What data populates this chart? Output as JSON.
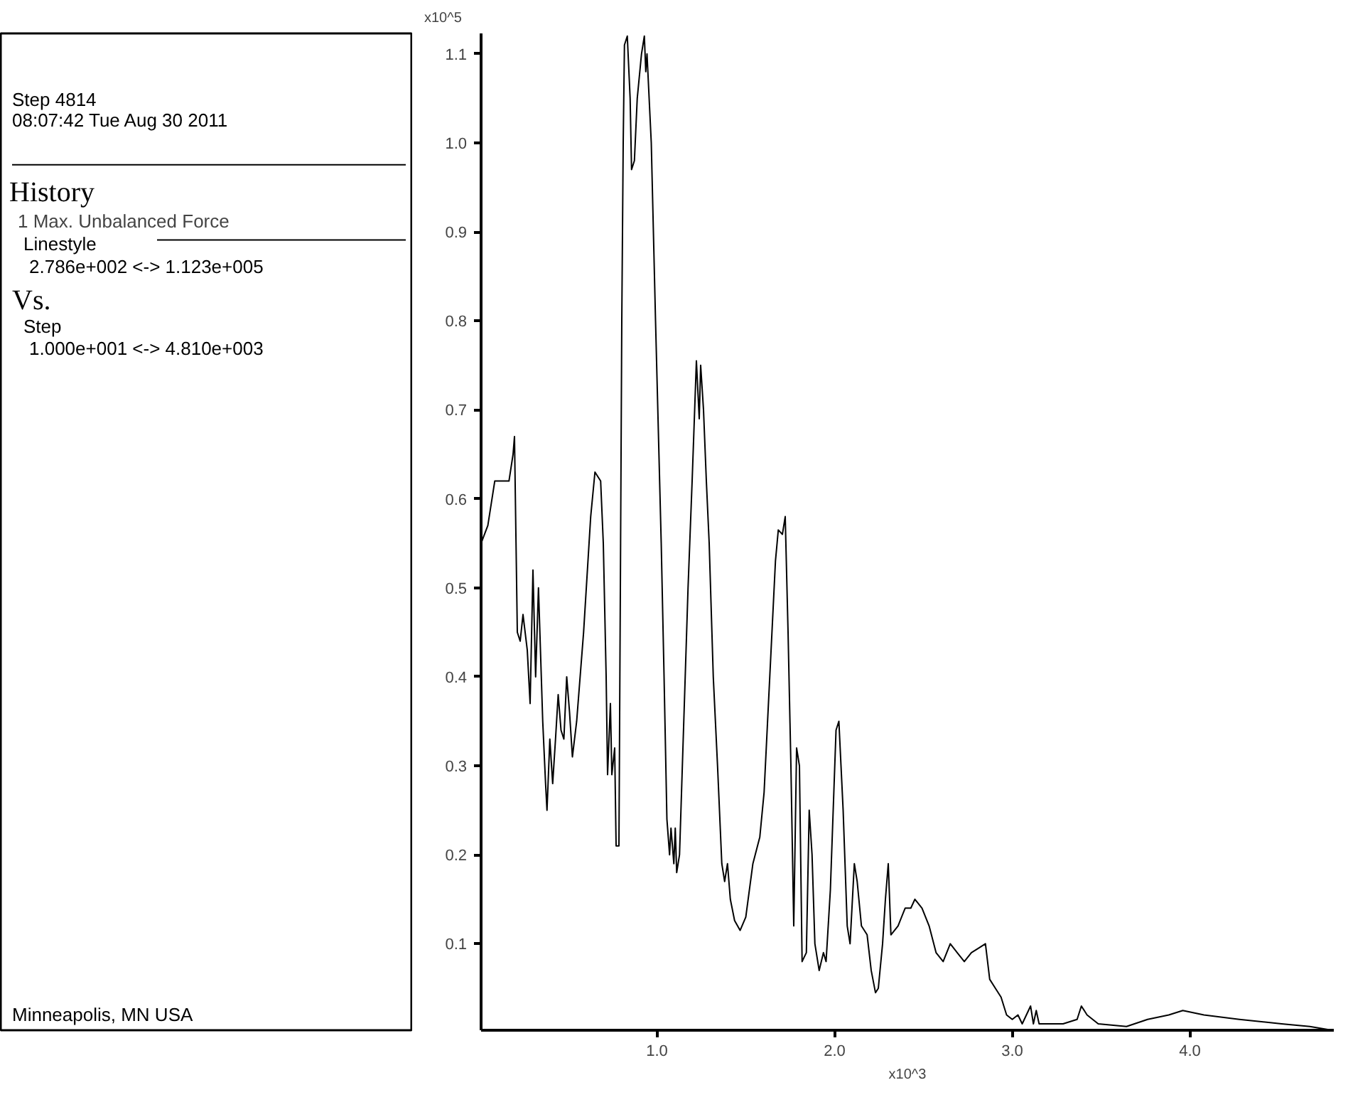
{
  "chart_data": {
    "type": "line",
    "xlabel": "x10^3",
    "ylabel": "x10^5",
    "annotations": [
      "Step 4814",
      "08:07:42 Tue Aug 30 2011",
      "History",
      "Linestyle",
      "2.786e+002 <-> 1.123e+005",
      "Vs.",
      "Step",
      "1.000e+001 <-> 4.810e+003",
      "Minneapolis, MN USA"
    ],
    "xlim": [
      0.01,
      4.81
    ],
    "ylim": [
      0.0028,
      1.123
    ],
    "xticks": [
      {
        "value": 1,
        "label": "1.0"
      },
      {
        "value": 2,
        "label": "2.0"
      },
      {
        "value": 3,
        "label": "3.0"
      },
      {
        "value": 4,
        "label": "4.0"
      }
    ],
    "yticks": [
      0.1,
      0.2,
      0.3,
      0.4,
      0.5,
      0.6,
      0.7,
      0.8,
      0.9,
      {
        "value": 1,
        "label": "1.0"
      },
      1.1
    ],
    "grid": false,
    "legend": "left",
    "series": [
      {
        "name": "1 Max. Unbalanced Force",
        "color": "#000000",
        "x": [
          0.01,
          0.048,
          0.087,
          0.111,
          0.167,
          0.19,
          0.198,
          0.214,
          0.23,
          0.246,
          0.27,
          0.286,
          0.302,
          0.317,
          0.333,
          0.357,
          0.373,
          0.381,
          0.397,
          0.413,
          0.429,
          0.444,
          0.46,
          0.476,
          0.492,
          0.508,
          0.524,
          0.548,
          0.587,
          0.627,
          0.651,
          0.683,
          0.698,
          0.714,
          0.722,
          0.738,
          0.746,
          0.762,
          0.77,
          0.786,
          0.794,
          0.802,
          0.81,
          0.817,
          0.833,
          0.849,
          0.857,
          0.873,
          0.889,
          0.913,
          0.929,
          0.937,
          0.944,
          0.968,
          0.992,
          1.024,
          1.04,
          1.056,
          1.071,
          1.079,
          1.095,
          1.103,
          1.111,
          1.127,
          1.151,
          1.175,
          1.198,
          1.214,
          1.222,
          1.238,
          1.246,
          1.262,
          1.278,
          1.294,
          1.317,
          1.341,
          1.365,
          1.381,
          1.397,
          1.413,
          1.437,
          1.468,
          1.5,
          1.54,
          1.579,
          1.603,
          1.635,
          1.667,
          1.683,
          1.706,
          1.722,
          1.738,
          1.754,
          1.77,
          1.786,
          1.802,
          1.817,
          1.841,
          1.857,
          1.873,
          1.889,
          1.913,
          1.937,
          1.952,
          1.976,
          2.008,
          2.024,
          2.048,
          2.071,
          2.087,
          2.111,
          2.127,
          2.151,
          2.183,
          2.206,
          2.23,
          2.246,
          2.27,
          2.286,
          2.302,
          2.317,
          2.357,
          2.397,
          2.429,
          2.452,
          2.492,
          2.532,
          2.571,
          2.611,
          2.651,
          2.69,
          2.73,
          2.77,
          2.81,
          2.849,
          2.873,
          2.905,
          2.937,
          2.968,
          3.0,
          3.032,
          3.056,
          3.103,
          3.119,
          3.135,
          3.151,
          3.206,
          3.286,
          3.365,
          3.389,
          3.421,
          3.484,
          3.643,
          3.762,
          3.881,
          3.96,
          4.079,
          4.278,
          4.516,
          4.675,
          4.794,
          4.81
        ],
        "values": [
          0.55,
          0.57,
          0.62,
          0.62,
          0.62,
          0.65,
          0.67,
          0.45,
          0.44,
          0.47,
          0.43,
          0.37,
          0.52,
          0.4,
          0.5,
          0.35,
          0.28,
          0.25,
          0.33,
          0.28,
          0.33,
          0.38,
          0.34,
          0.33,
          0.4,
          0.36,
          0.31,
          0.35,
          0.45,
          0.58,
          0.63,
          0.62,
          0.55,
          0.4,
          0.29,
          0.37,
          0.29,
          0.32,
          0.21,
          0.21,
          0.5,
          0.8,
          1.0,
          1.11,
          1.12,
          1.05,
          0.97,
          0.98,
          1.05,
          1.1,
          1.12,
          1.08,
          1.1,
          1.0,
          0.8,
          0.55,
          0.4,
          0.24,
          0.2,
          0.23,
          0.19,
          0.23,
          0.18,
          0.2,
          0.35,
          0.5,
          0.62,
          0.71,
          0.755,
          0.69,
          0.75,
          0.7,
          0.62,
          0.55,
          0.4,
          0.3,
          0.19,
          0.17,
          0.19,
          0.15,
          0.126,
          0.115,
          0.13,
          0.19,
          0.22,
          0.27,
          0.4,
          0.53,
          0.565,
          0.56,
          0.58,
          0.45,
          0.3,
          0.12,
          0.32,
          0.3,
          0.08,
          0.09,
          0.25,
          0.2,
          0.1,
          0.07,
          0.09,
          0.08,
          0.16,
          0.34,
          0.35,
          0.25,
          0.12,
          0.1,
          0.19,
          0.17,
          0.12,
          0.11,
          0.07,
          0.045,
          0.05,
          0.1,
          0.15,
          0.19,
          0.11,
          0.12,
          0.14,
          0.14,
          0.15,
          0.14,
          0.12,
          0.09,
          0.08,
          0.1,
          0.09,
          0.08,
          0.09,
          0.095,
          0.1,
          0.06,
          0.05,
          0.04,
          0.02,
          0.015,
          0.02,
          0.01,
          0.03,
          0.01,
          0.025,
          0.01,
          0.01,
          0.01,
          0.015,
          0.03,
          0.02,
          0.01,
          0.007,
          0.015,
          0.02,
          0.025,
          0.02,
          0.015,
          0.01,
          0.007,
          0.003,
          0.003
        ]
      }
    ]
  }
}
